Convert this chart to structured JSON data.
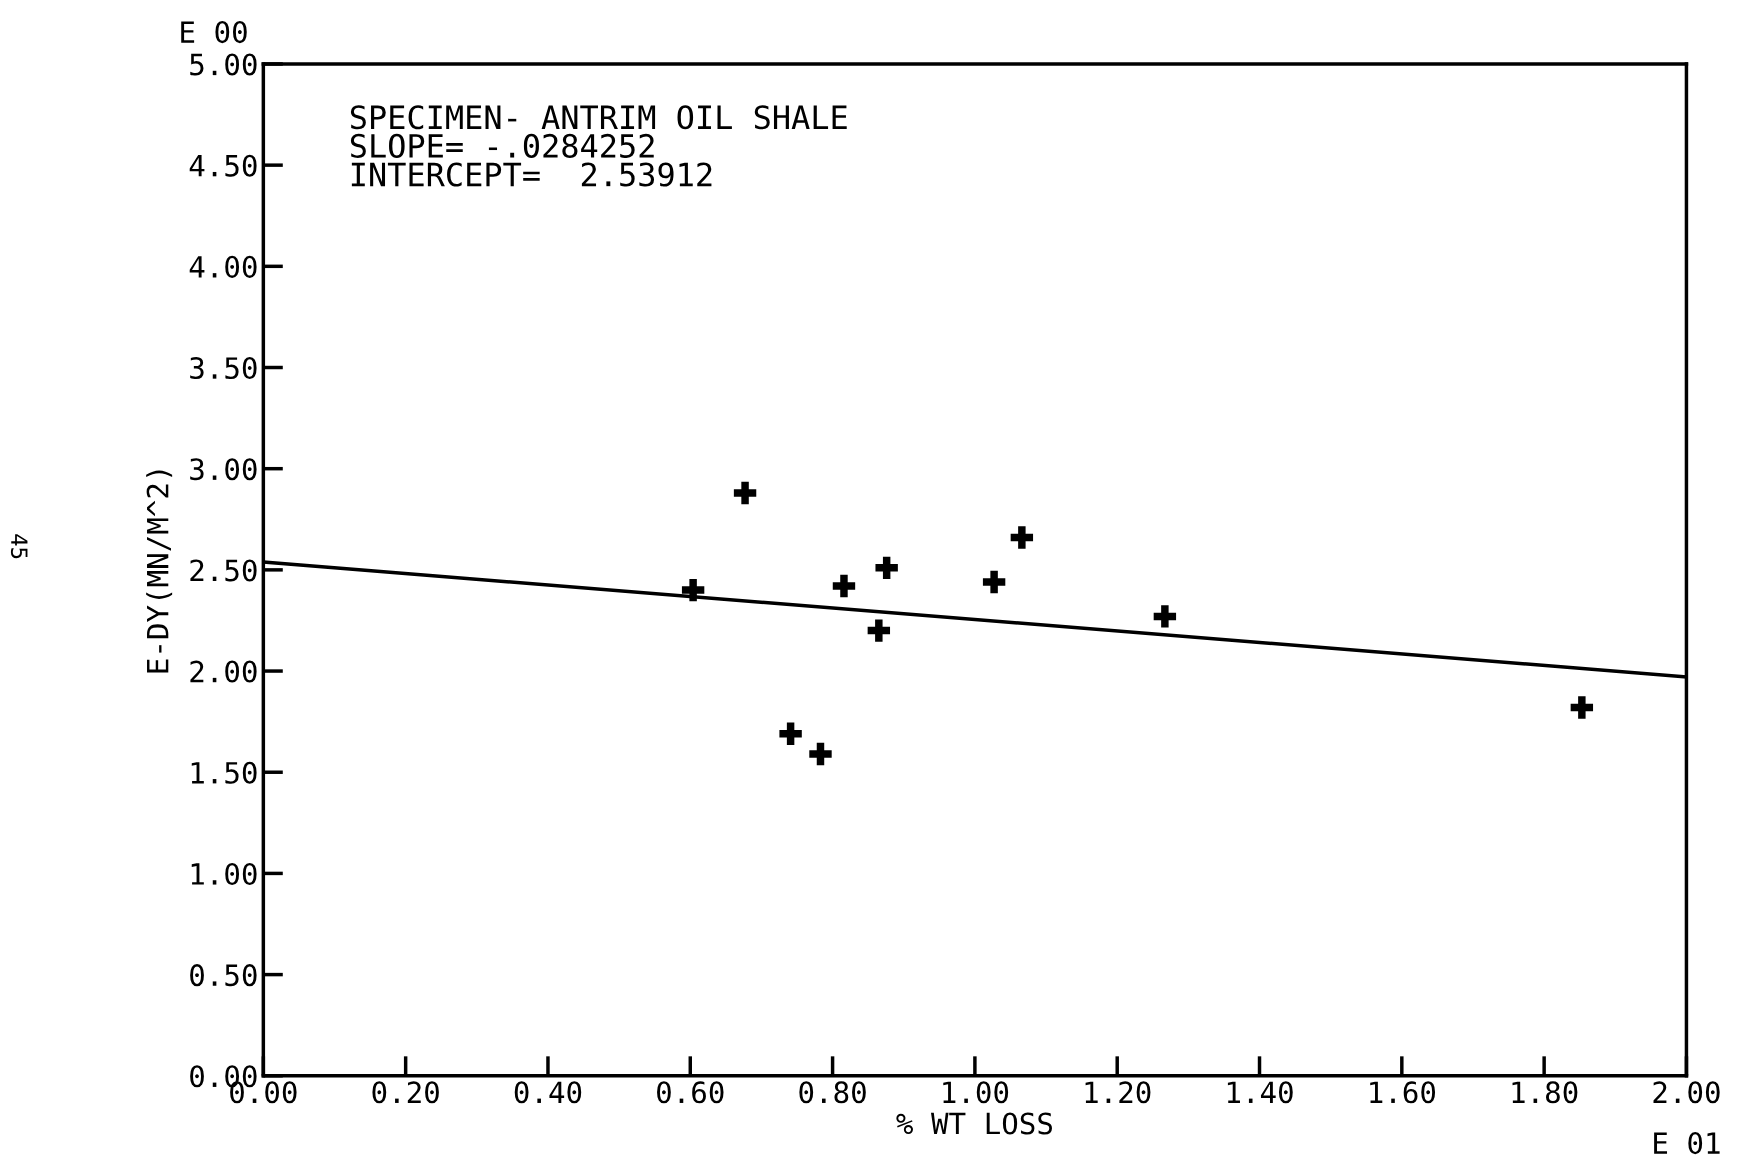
{
  "chart_data": {
    "type": "scatter",
    "xlabel": "% WT LOSS",
    "ylabel": "E-DY(MN/M^2)",
    "annotations": [
      "SPECIMEN- ANTRIM OIL SHALE\nSLOPE= -.0284252\nINTERCEPT=  2.53912",
      "E 00",
      "E 01",
      "45"
    ],
    "series": [
      {
        "type": "scatter",
        "color": "#000000",
        "marker": "cross",
        "x": [
          0.604,
          0.677,
          0.741,
          0.783,
          0.816,
          0.865,
          0.876,
          1.027,
          1.066,
          1.267,
          1.853
        ],
        "values": [
          2.4,
          2.88,
          1.69,
          1.59,
          2.42,
          2.2,
          2.51,
          2.44,
          2.66,
          2.27,
          1.82
        ]
      },
      {
        "type": "line",
        "color": "#000000",
        "line_style": "solid",
        "x": [
          0.0,
          2.0
        ],
        "values": [
          2.539,
          1.971
        ]
      }
    ],
    "xlim": [
      0.0,
      2.0
    ],
    "ylim": [
      0.0,
      5.0
    ],
    "xticks": [
      {
        "value": 0.0,
        "label": "0.00"
      },
      {
        "value": 0.2,
        "label": "0.20"
      },
      {
        "value": 0.4,
        "label": "0.40"
      },
      {
        "value": 0.6,
        "label": "0.60"
      },
      {
        "value": 0.8,
        "label": "0.80"
      },
      {
        "value": 1.0,
        "label": "1.00"
      },
      {
        "value": 1.2,
        "label": "1.20"
      },
      {
        "value": 1.4,
        "label": "1.40"
      },
      {
        "value": 1.6,
        "label": "1.60"
      },
      {
        "value": 1.8,
        "label": "1.80"
      },
      {
        "value": 2.0,
        "label": "2.00"
      }
    ],
    "yticks": [
      {
        "value": 0.0,
        "label": "0.00"
      },
      {
        "value": 0.5,
        "label": "0.50"
      },
      {
        "value": 1.0,
        "label": "1.00"
      },
      {
        "value": 1.5,
        "label": "1.50"
      },
      {
        "value": 2.0,
        "label": "2.00"
      },
      {
        "value": 2.5,
        "label": "2.50"
      },
      {
        "value": 3.0,
        "label": "3.00"
      },
      {
        "value": 3.5,
        "label": "3.50"
      },
      {
        "value": 4.0,
        "label": "4.00"
      },
      {
        "value": 4.5,
        "label": "4.50"
      },
      {
        "value": 5.0,
        "label": "5.00"
      }
    ],
    "grid": false,
    "legend": false
  }
}
